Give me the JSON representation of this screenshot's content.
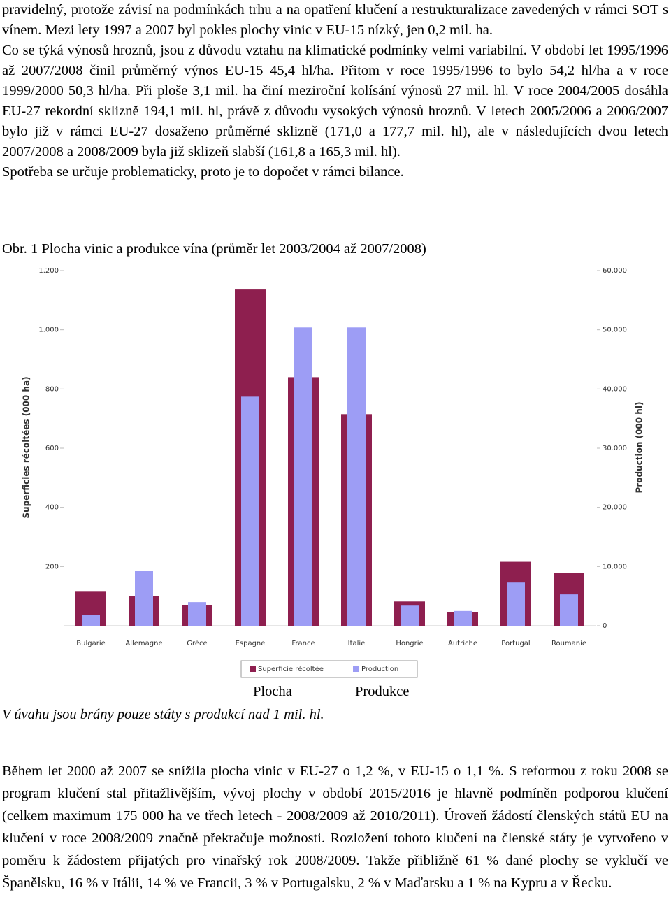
{
  "paragraphs_top": [
    "pravidelný, protože závisí na podmínkách trhu a na opatření klučení a restrukturalizace zavedených v rámci SOT s vínem. Mezi lety 1997 a 2007 byl pokles plochy vinic v EU-15 nízký, jen 0,2 mil. ha.",
    "Co se týká výnosů hroznů, jsou z důvodu vztahu na klimatické podmínky velmi variabilní. V období let 1995/1996 až 2007/2008 činil průměrný výnos EU-15 45,4 hl/ha. Přitom v roce 1995/1996 to bylo 54,2 hl/ha a v roce 1999/2000 50,3 hl/ha. Při ploše 3,1 mil. ha činí meziroční kolísání výnosů 27 mil. hl. V roce 2004/2005 dosáhla EU-27 rekordní sklizně 194,1 mil. hl, právě z důvodu vysokých výnosů hroznů. V letech 2005/2006 a 2006/2007 bylo již v rámci EU-27 dosaženo průměrné sklizně (171,0 a 177,7 mil. hl), ale v následujících dvou letech 2007/2008 a 2008/2009 byla již sklizeň slabší (161,8 a 165,3 mil. hl).",
    "Spotřeba se určuje problematicky, proto je to dopočet v rámci bilance."
  ],
  "figure": {
    "caption": "Obr. 1 Plocha vinic a produkce vína (průměr let 2003/2004 až 2007/2008)",
    "labels": [
      "Plocha",
      "Produkce"
    ],
    "note": "V úvahu jsou brány pouze státy s produkcí nad 1 mil. hl."
  },
  "chart_data": {
    "type": "bar",
    "categories": [
      "Bulgarie",
      "Allemagne",
      "Grèce",
      "Espagne",
      "France",
      "Italie",
      "Hongrie",
      "Autriche",
      "Portugal",
      "Roumanie"
    ],
    "series": [
      {
        "name": "Superficie récoltée",
        "color": "#8e1f4f",
        "values": [
          115,
          100,
          70,
          1136,
          840,
          715,
          82,
          45,
          216,
          179
        ]
      },
      {
        "name": "Production",
        "color": "#9d9df5",
        "axis": "y2",
        "values": [
          1800,
          9300,
          4000,
          38700,
          50400,
          50400,
          3400,
          2500,
          7300,
          5300
        ]
      }
    ],
    "y_label": "Superficies récoltées (000 ha)",
    "y2_label": "Production (000 hl)",
    "ylim": [
      0,
      1200
    ],
    "yticks": [
      200,
      400,
      600,
      800,
      {
        "value": 1000,
        "label": "1.000"
      },
      {
        "value": 1200,
        "label": "1.200"
      }
    ],
    "y2lim": [
      0,
      60000
    ],
    "y2ticks": [
      0,
      {
        "value": 10000,
        "label": "10.000"
      },
      {
        "value": 20000,
        "label": "20.000"
      },
      {
        "value": 30000,
        "label": "30.000"
      },
      {
        "value": 40000,
        "label": "40.000"
      },
      {
        "value": 50000,
        "label": "50.000"
      },
      {
        "value": 60000,
        "label": "60.000"
      }
    ],
    "grid": false,
    "legend": "bottom"
  },
  "paragraphs_bottom": [
    "Během let 2000 až 2007 se snížila plocha vinic v EU-27 o 1,2 %, v EU-15 o 1,1 %. S reformou z roku 2008 se program klučení stal přitažlivějším, vývoj plochy v období 2015/2016 je hlavně podmíněn podporou klučení (celkem maximum 175 000 ha ve třech letech - 2008/2009 až 2010/2011). Úroveň žádostí členských států EU na klučení v roce 2008/2009 značně překračuje možnosti. Rozložení tohoto klučení na členské státy je vytvořeno v poměru k žádostem přijatých pro vinařský rok 2008/2009. Takže přibližně 61 % dané plochy se vyklučí ve Španělsku, 16 % v Itálii, 14 % ve Francii, 3 % v Portugalsku, 2 % v Maďarsku a 1 % na Kypru a v Řecku."
  ]
}
